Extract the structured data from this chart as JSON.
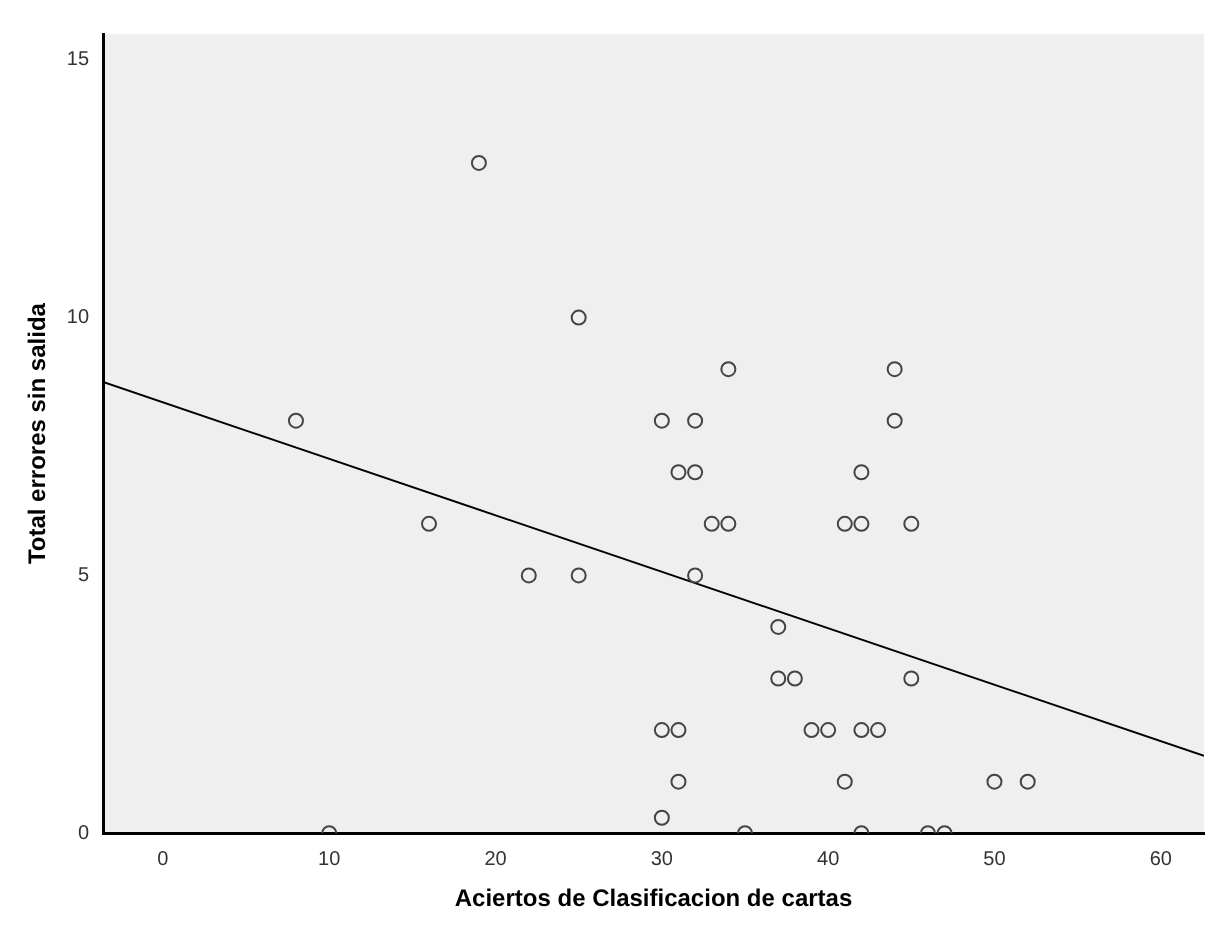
{
  "chart_data": {
    "type": "scatter",
    "xlabel": "Aciertos de Clasificacion de cartas",
    "ylabel": "Total errores sin salida",
    "x": [
      19,
      25,
      8,
      34,
      44,
      30,
      32,
      44,
      31,
      32,
      42,
      16,
      33,
      34,
      41,
      42,
      45,
      22,
      25,
      32,
      37,
      37,
      38,
      45,
      30,
      31,
      39,
      40,
      42,
      43,
      31,
      41,
      50,
      52,
      30,
      10,
      35,
      42,
      46,
      47
    ],
    "series": [
      {
        "color": "#444444",
        "marker": "circle",
        "values": [
          13,
          10,
          8,
          9,
          9,
          8,
          8,
          8,
          7,
          7,
          7,
          6,
          6,
          6,
          6,
          6,
          6,
          5,
          5,
          5,
          4,
          3,
          3,
          3,
          2,
          2,
          2,
          2,
          2,
          2,
          1,
          1,
          1,
          1,
          0.3,
          0,
          0,
          0,
          0,
          0
        ]
      },
      {
        "type": "line",
        "color": "#000000",
        "marker": "none",
        "x": [
          -3.6,
          62.6
        ],
        "values": [
          8.75,
          1.5
        ]
      }
    ],
    "xlim": [
      -3.6,
      62.6
    ],
    "ylim": [
      0,
      15.5
    ],
    "xticks": [
      0,
      10,
      20,
      30,
      40,
      50,
      60
    ],
    "yticks": [
      0,
      5,
      10,
      15
    ],
    "grid": false,
    "legend": false
  }
}
